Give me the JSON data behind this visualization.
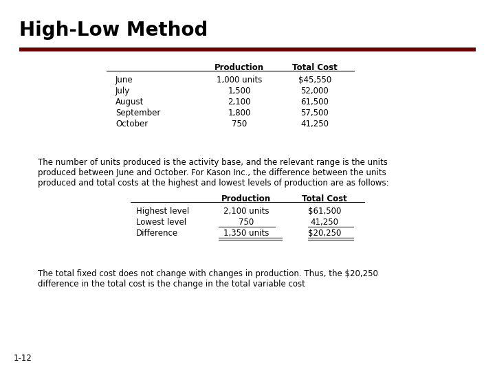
{
  "title": "High-Low Method",
  "title_color": "#000000",
  "title_fontsize": 20,
  "divider_color": "#6B0000",
  "background_color": "#FFFFFF",
  "table1_header": [
    "",
    "Production",
    "Total Cost"
  ],
  "table1_rows": [
    [
      "June",
      "1,000 units",
      "$45,550"
    ],
    [
      "July",
      "1,500",
      "52,000"
    ],
    [
      "August",
      "2,100",
      "61,500"
    ],
    [
      "September",
      "1,800",
      "57,500"
    ],
    [
      "October",
      "750",
      "41,250"
    ]
  ],
  "paragraph": "The number of units produced is the activity base, and the relevant range is the units\nproduced between June and October. For Kason Inc., the difference between the units\nproduced and total costs at the highest and lowest levels of production are as follows:",
  "table2_header": [
    "",
    "Production",
    "Total Cost"
  ],
  "table2_rows": [
    [
      "Highest level",
      "2,100 units",
      "$61,500"
    ],
    [
      "Lowest level",
      "750",
      "41,250"
    ],
    [
      "Difference",
      "1,350 units",
      "$20,250"
    ]
  ],
  "footer_text": "The total fixed cost does not change with changes in production. Thus, the $20,250\ndifference in the total cost is the change in the total variable cost",
  "page_number": "1-12",
  "fig_width": 7.2,
  "fig_height": 5.4,
  "dpi": 100
}
